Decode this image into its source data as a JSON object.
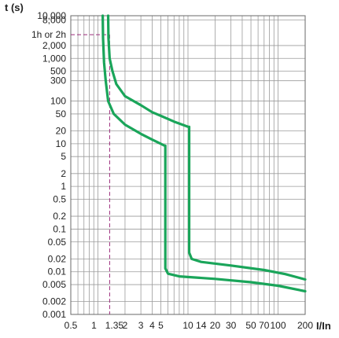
{
  "chart_data": {
    "type": "line",
    "title": "",
    "xlabel": "I/In",
    "ylabel": "t (s)",
    "x_scale": "log",
    "y_scale": "log",
    "xlim": [
      0.5,
      200
    ],
    "ylim": [
      0.001,
      10000
    ],
    "grid": true,
    "legend": "none",
    "x_tick_labels": [
      "0.5",
      "1",
      "1.35",
      "2",
      "3",
      "4",
      "5",
      "10",
      "14",
      "20",
      "30",
      "50",
      "70",
      "100",
      "200"
    ],
    "x_tick_values": [
      0.5,
      1,
      1.35,
      2,
      3,
      4,
      5,
      10,
      14,
      20,
      30,
      50,
      70,
      100,
      200
    ],
    "y_tick_labels": [
      "10,000",
      "8,000",
      "2,000",
      "1,000",
      "500",
      "300",
      "100",
      "50",
      "20",
      "10",
      "5",
      "2",
      "1",
      "0.5",
      "0.2",
      "0.1",
      "0.05",
      "0.02",
      "0.01",
      "0.005",
      "0.002",
      "0.001"
    ],
    "y_tick_values": [
      10000,
      8000,
      2000,
      1000,
      500,
      300,
      100,
      50,
      20,
      10,
      5,
      2,
      1,
      0.5,
      0.2,
      0.1,
      0.05,
      0.02,
      0.01,
      0.005,
      0.002,
      0.001
    ],
    "y_special_label": "1h or 2h",
    "y_special_value": 3600,
    "reference_x": 1.35,
    "reference_y": 3600,
    "series": [
      {
        "color": "#1aa55a",
        "points": [
          [
            1.13,
            10000
          ],
          [
            1.14,
            3000
          ],
          [
            1.17,
            800
          ],
          [
            1.22,
            300
          ],
          [
            1.3,
            100
          ],
          [
            1.5,
            50
          ],
          [
            2,
            28
          ],
          [
            3,
            17
          ],
          [
            4,
            12.5
          ],
          [
            5,
            10
          ],
          [
            5.5,
            9
          ],
          [
            5.6,
            9
          ],
          [
            5.6,
            0.012
          ],
          [
            6,
            0.009
          ],
          [
            8,
            0.0078
          ],
          [
            20,
            0.0068
          ],
          [
            50,
            0.0057
          ],
          [
            100,
            0.0047
          ],
          [
            200,
            0.0035
          ]
        ]
      },
      {
        "color": "#1aa55a",
        "points": [
          [
            1.3,
            10000
          ],
          [
            1.31,
            3000
          ],
          [
            1.35,
            1000
          ],
          [
            1.45,
            500
          ],
          [
            1.6,
            250
          ],
          [
            2,
            130
          ],
          [
            3,
            80
          ],
          [
            4,
            55
          ],
          [
            5,
            45
          ],
          [
            7,
            33
          ],
          [
            10,
            25
          ],
          [
            10.3,
            25
          ],
          [
            10.3,
            0.028
          ],
          [
            11,
            0.02
          ],
          [
            14,
            0.017
          ],
          [
            30,
            0.014
          ],
          [
            70,
            0.011
          ],
          [
            120,
            0.0088
          ],
          [
            200,
            0.0066
          ]
        ]
      }
    ]
  }
}
